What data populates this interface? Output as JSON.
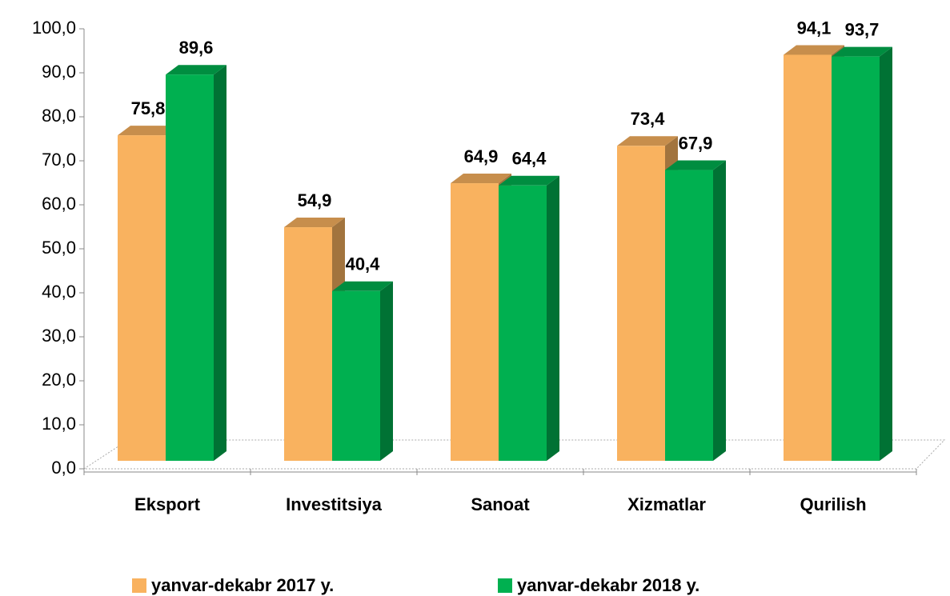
{
  "chart_data": {
    "type": "bar",
    "categories": [
      "Eksport",
      "Investitsiya",
      "Sanoat",
      "Xizmatlar",
      "Qurilish"
    ],
    "series": [
      {
        "name": "yanvar-dekabr 2017 y.",
        "color": "#f9b25f",
        "values": [
          75.8,
          54.9,
          64.9,
          73.4,
          94.1
        ],
        "value_labels": [
          "75,8",
          "54,9",
          "64,9",
          "73,4",
          "94,1"
        ]
      },
      {
        "name": "yanvar-dekabr 2018 y.",
        "color": "#00b050",
        "values": [
          89.6,
          40.4,
          64.4,
          67.9,
          93.7
        ],
        "value_labels": [
          "89,6",
          "40,4",
          "64,4",
          "67,9",
          "93,7"
        ]
      }
    ],
    "ylim": [
      0,
      100
    ],
    "yticks": [
      {
        "value": 0,
        "label": "0,0"
      },
      {
        "value": 10,
        "label": "10,0"
      },
      {
        "value": 20,
        "label": "20,0"
      },
      {
        "value": 30,
        "label": "30,0"
      },
      {
        "value": 40,
        "label": "40,0"
      },
      {
        "value": 50,
        "label": "50,0"
      },
      {
        "value": 60,
        "label": "60,0"
      },
      {
        "value": 70,
        "label": "70,0"
      },
      {
        "value": 80,
        "label": "80,0"
      },
      {
        "value": 90,
        "label": "90,0"
      },
      {
        "value": 100,
        "label": "100,0"
      }
    ],
    "legend": "bottom"
  }
}
